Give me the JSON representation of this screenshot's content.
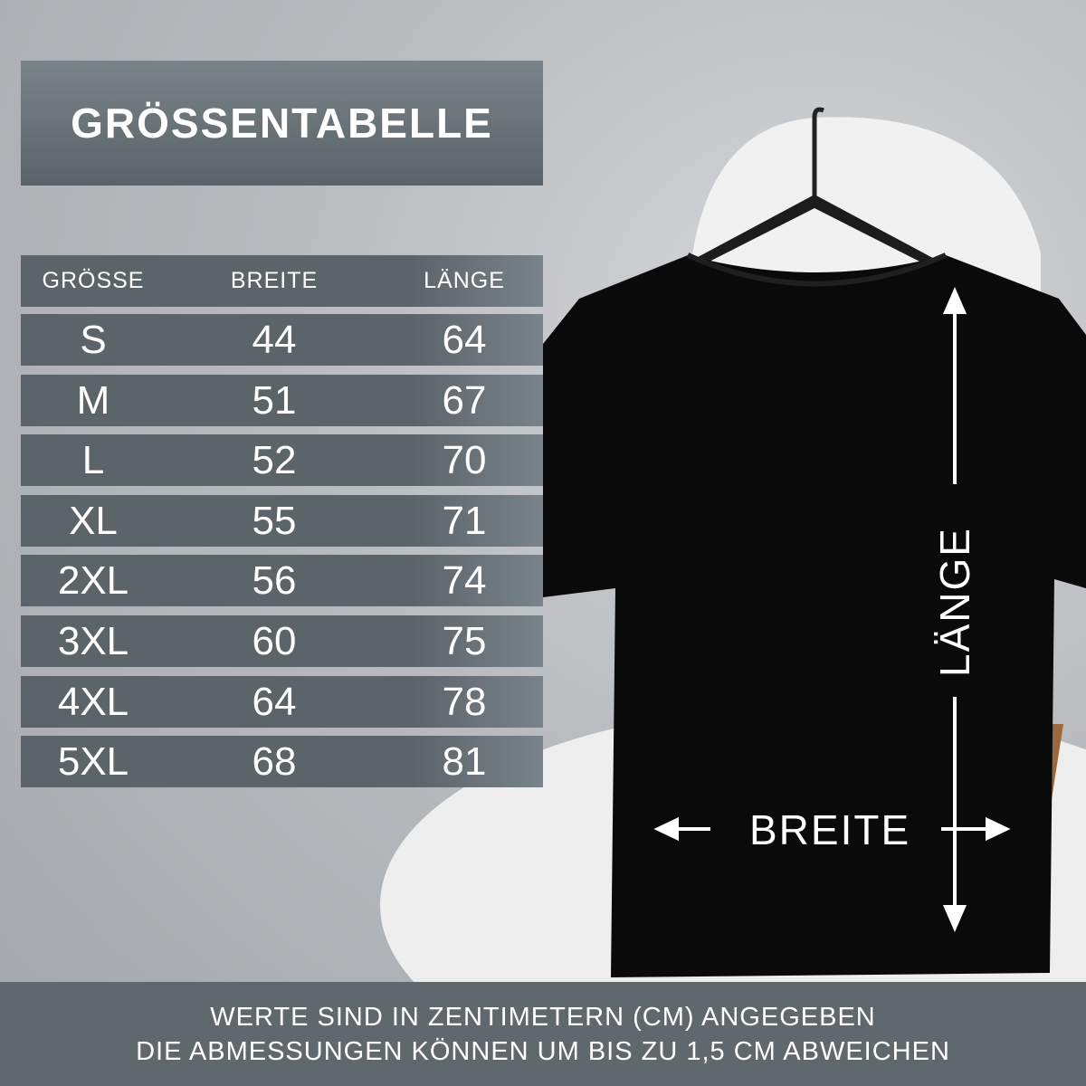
{
  "title": "GRÖSSENTABELLE",
  "table": {
    "headers": [
      "GRÖSSE",
      "BREITE",
      "LÄNGE"
    ],
    "rows": [
      [
        "S",
        "44",
        "64"
      ],
      [
        "M",
        "51",
        "67"
      ],
      [
        "L",
        "52",
        "70"
      ],
      [
        "XL",
        "55",
        "71"
      ],
      [
        "2XL",
        "56",
        "74"
      ],
      [
        "3XL",
        "60",
        "75"
      ],
      [
        "4XL",
        "64",
        "78"
      ],
      [
        "5XL",
        "68",
        "81"
      ]
    ]
  },
  "diagram": {
    "length_label": "LÄNGE",
    "width_label": "BREITE"
  },
  "footer": {
    "line1": "WERTE SIND IN ZENTIMETERN (CM) ANGEGEBEN",
    "line2": "DIE ABMESSUNGEN KÖNNEN UM BIS ZU 1,5 CM ABWEICHEN"
  },
  "colors": {
    "panel": "#5b6469",
    "footer": "#5f686d",
    "shirt": "#0a0a0a"
  }
}
